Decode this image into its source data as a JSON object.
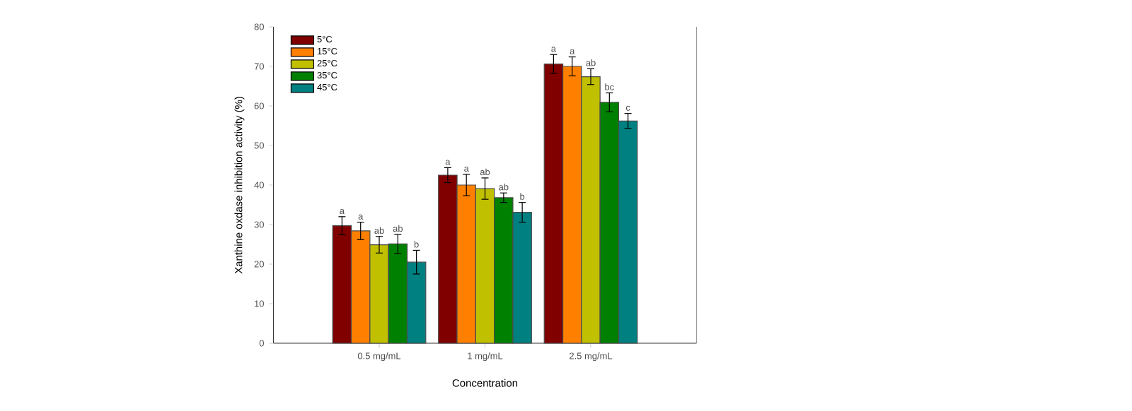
{
  "chart_data": {
    "type": "bar",
    "xlabel": "Concentration",
    "ylabel": "Xanthine oxdase inhibition activity (%)",
    "categories": [
      "0.5 mg/mL",
      "1  mg/mL",
      "2.5 mg/mL"
    ],
    "series": [
      {
        "name": "5°C",
        "color": "#800000",
        "values": [
          29.7,
          42.5,
          70.6
        ],
        "errors": [
          2.3,
          1.9,
          2.4
        ]
      },
      {
        "name": "15°C",
        "color": "#ff8000",
        "values": [
          28.4,
          40.0,
          70.0
        ],
        "errors": [
          2.2,
          2.7,
          2.4
        ]
      },
      {
        "name": "25°C",
        "color": "#c0c000",
        "values": [
          24.9,
          39.1,
          67.4
        ],
        "errors": [
          2.1,
          2.7,
          2.0
        ]
      },
      {
        "name": "35°C",
        "color": "#008000",
        "values": [
          25.1,
          36.8,
          60.9
        ],
        "errors": [
          2.4,
          1.2,
          2.4
        ]
      },
      {
        "name": "45°C",
        "color": "#008080",
        "values": [
          20.5,
          33.1,
          56.2
        ],
        "errors": [
          3.0,
          2.5,
          1.9
        ]
      }
    ],
    "ylim": [
      0,
      80
    ],
    "yticks": [
      0,
      10,
      20,
      30,
      40,
      50,
      60,
      70,
      80
    ],
    "grid": false,
    "legend": "top left",
    "annotations": [
      "a",
      "a",
      "ab",
      "ab",
      "b",
      "a",
      "a",
      "ab",
      "ab",
      "b",
      "a",
      "a",
      "ab",
      "bc",
      "c"
    ]
  }
}
